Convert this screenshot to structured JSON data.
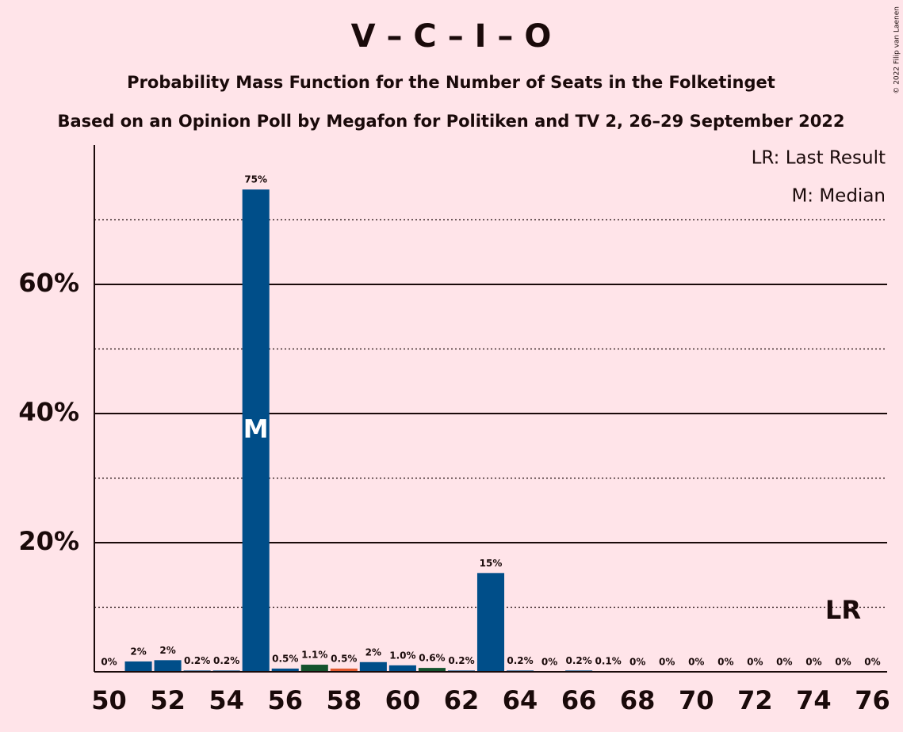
{
  "chart_data": {
    "type": "bar",
    "title": "V – C – I – O",
    "subtitle": "Probability Mass Function for the Number of Seats in the Folketinget",
    "subtitle2": "Based on an Opinion Poll by Megafon for Politiken and TV 2, 26–29 September 2022",
    "copyright": "© 2022 Filip van Laenen",
    "legend": [
      "LR: Last Result",
      "M: Median"
    ],
    "x": [
      50,
      51,
      52,
      53,
      54,
      55,
      56,
      57,
      58,
      59,
      60,
      61,
      62,
      63,
      64,
      65,
      66,
      67,
      68,
      69,
      70,
      71,
      72,
      73,
      74,
      75,
      76
    ],
    "values": [
      0,
      1.6,
      1.8,
      0.2,
      0.2,
      74.7,
      0.5,
      1.1,
      0.5,
      1.5,
      1.0,
      0.6,
      0.2,
      15.3,
      0.2,
      0,
      0.2,
      0.1,
      0,
      0,
      0,
      0,
      0,
      0,
      0,
      0,
      0
    ],
    "value_labels": [
      "0%",
      "2%",
      "2%",
      "0.2%",
      "0.2%",
      "75%",
      "0.5%",
      "1.1%",
      "0.5%",
      "2%",
      "1.0%",
      "0.6%",
      "0.2%",
      "15%",
      "0.2%",
      "0%",
      "0.2%",
      "0.1%",
      "0%",
      "0%",
      "0%",
      "0%",
      "0%",
      "0%",
      "0%",
      "0%",
      "0%"
    ],
    "colors": [
      "#004e89",
      "#004e89",
      "#004e89",
      "#004e89",
      "#004e89",
      "#004e89",
      "#004e89",
      "#14532d",
      "#e0572c",
      "#004e89",
      "#004e89",
      "#14532d",
      "#004e89",
      "#004e89",
      "#004e89",
      "#004e89",
      "#004e89",
      "#004e89",
      "#004e89",
      "#004e89",
      "#004e89",
      "#004e89",
      "#004e89",
      "#004e89",
      "#004e89",
      "#004e89",
      "#004e89"
    ],
    "xlim": [
      49.5,
      76.5
    ],
    "xticks": [
      50,
      52,
      54,
      56,
      58,
      60,
      62,
      64,
      66,
      68,
      70,
      72,
      74,
      76
    ],
    "ylim": [
      0,
      81.6
    ],
    "yticks": [
      {
        "value": 20,
        "label": "20%"
      },
      {
        "value": 40,
        "label": "40%"
      },
      {
        "value": 60,
        "label": "60%"
      }
    ],
    "minor_grid": [
      10,
      30,
      50,
      70
    ],
    "grid": true,
    "median": 55,
    "median_label": "M",
    "last_result": 75,
    "last_result_label": "LR"
  }
}
